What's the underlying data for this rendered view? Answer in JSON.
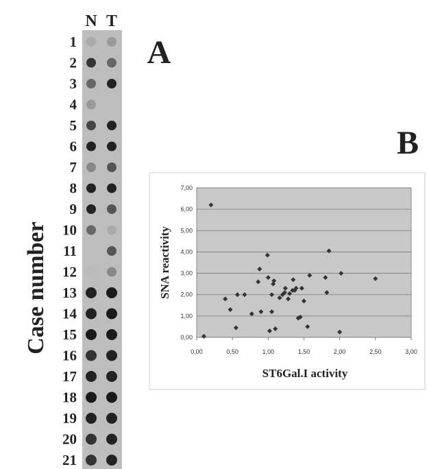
{
  "panel_a": {
    "label": "A",
    "axis_label": "Case number",
    "columns": [
      "N",
      "T"
    ],
    "rows": [
      "1",
      "2",
      "3",
      "4",
      "5",
      "6",
      "7",
      "8",
      "9",
      "10",
      "11",
      "12",
      "13",
      "14",
      "15",
      "16",
      "17",
      "18",
      "19",
      "20",
      "21"
    ]
  },
  "panel_b": {
    "label": "B"
  },
  "chart_data": {
    "type": "scatter",
    "x_label": "ST6Gal.I activity",
    "y_label": "SNA reactivity",
    "color": "#333333",
    "x": [
      0.2,
      0.1,
      0.4,
      0.47,
      0.55,
      0.57,
      0.67,
      0.77,
      0.86,
      0.88,
      0.9,
      0.99,
      1.0,
      1.05,
      1.02,
      1.05,
      1.07,
      1.08,
      1.1,
      1.16,
      1.2,
      1.23,
      1.24,
      1.28,
      1.3,
      1.34,
      1.35,
      1.37,
      1.39,
      1.42,
      1.45,
      1.47,
      1.5,
      1.55,
      1.58,
      1.8,
      1.82,
      1.85,
      2.0,
      2.02,
      2.5
    ],
    "values": [
      6.2,
      0.05,
      1.8,
      1.3,
      0.45,
      2.0,
      2.0,
      1.1,
      2.6,
      3.2,
      1.2,
      3.85,
      2.8,
      2.0,
      0.3,
      1.2,
      2.5,
      2.65,
      0.4,
      1.85,
      2.0,
      2.1,
      2.3,
      1.8,
      2.05,
      2.2,
      2.7,
      2.2,
      2.3,
      0.9,
      0.95,
      2.3,
      1.7,
      0.5,
      2.9,
      2.8,
      2.1,
      4.05,
      0.25,
      3.0,
      2.75
    ],
    "xlim": [
      0,
      3
    ],
    "ylim": [
      0,
      7
    ],
    "xticks": [
      {
        "value": 0,
        "label": "0,00"
      },
      {
        "value": 0.5,
        "label": "0,50"
      },
      {
        "value": 1,
        "label": "1,00"
      },
      {
        "value": 1.5,
        "label": "1,50"
      },
      {
        "value": 2,
        "label": "2,00"
      },
      {
        "value": 2.5,
        "label": "2,50"
      },
      {
        "value": 3,
        "label": "3,00"
      }
    ],
    "yticks": [
      {
        "value": 0,
        "label": "0,00"
      },
      {
        "value": 1,
        "label": "1,00"
      },
      {
        "value": 2,
        "label": "2,00"
      },
      {
        "value": 3,
        "label": "3,00"
      },
      {
        "value": 4,
        "label": "4,00"
      },
      {
        "value": 5,
        "label": "5,00"
      },
      {
        "value": 6,
        "label": "6,00"
      },
      {
        "value": 7,
        "label": "7,00"
      }
    ],
    "grid": true
  }
}
